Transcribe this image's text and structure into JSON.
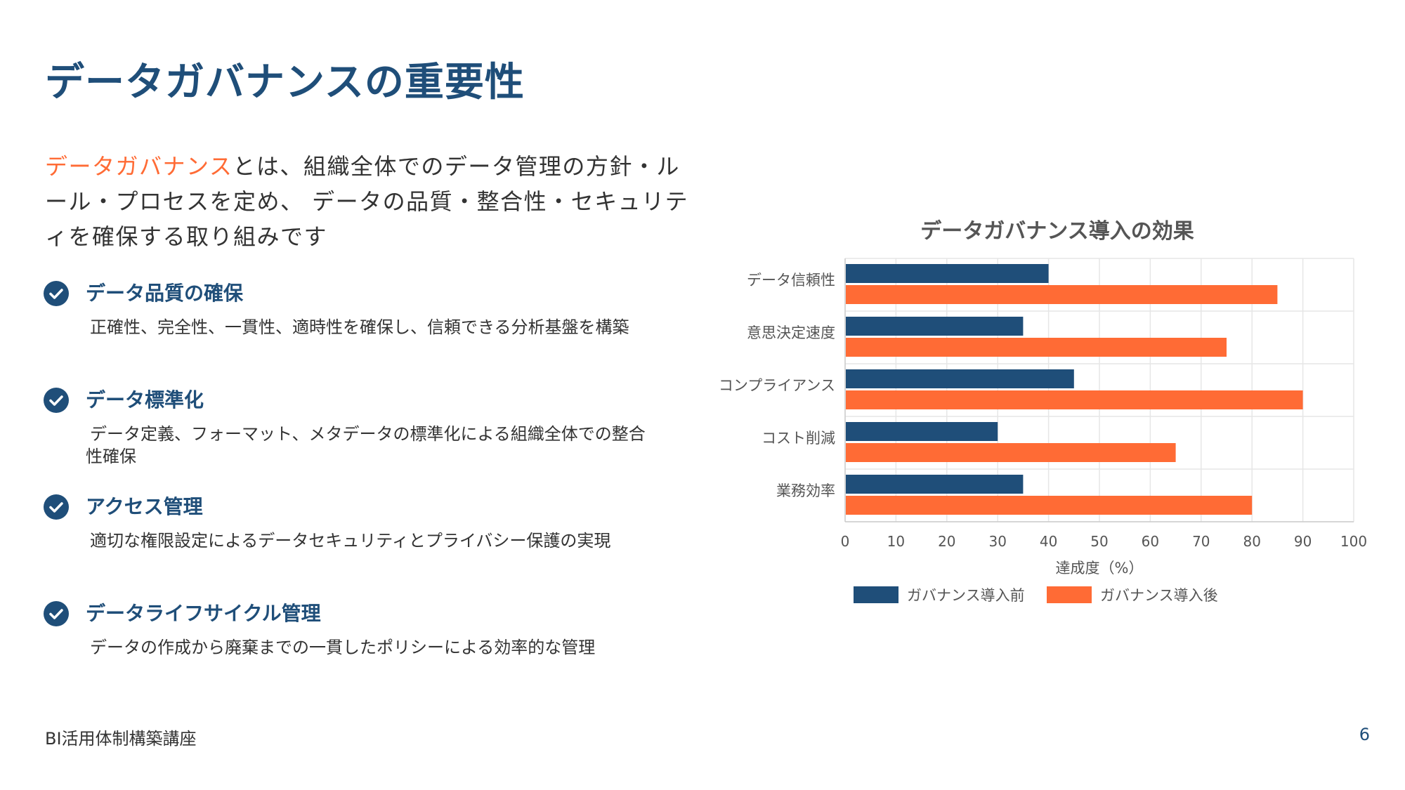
{
  "page": {
    "title": "データガバナンスの重要性",
    "footer_left": "BI活用体制構築講座",
    "page_number": "6"
  },
  "intro": {
    "highlight": "データガバナンス",
    "text": "とは、組織全体でのデータ管理の方針・ルール・プロセスを定め、 データの品質・整合性・セキュリティを確保する取り組みです"
  },
  "features": [
    {
      "icon": "check-circle-icon",
      "title": "データ品質の確保",
      "desc": "正確性、完全性、一貫性、適時性を確保し、信頼できる分析基盤を構築"
    },
    {
      "icon": "check-circle-icon",
      "title": "データ標準化",
      "desc": "データ定義、フォーマット、メタデータの標準化による組織全体での整合性確保"
    },
    {
      "icon": "check-circle-icon",
      "title": "アクセス管理",
      "desc": "適切な権限設定によるデータセキュリティとプライバシー保護の実現"
    },
    {
      "icon": "check-circle-icon",
      "title": "データライフサイクル管理",
      "desc": "データの作成から廃棄までの一貫したポリシーによる効率的な管理"
    }
  ],
  "colors": {
    "primary": "#1f4e79",
    "accent": "#ff6b35",
    "text": "#333333",
    "grid": "#e6e6e6"
  },
  "chart_data": {
    "type": "bar",
    "orientation": "horizontal",
    "title": "データガバナンス導入の効果",
    "categories": [
      "データ信頼性",
      "意思決定速度",
      "コンプライアンス",
      "コスト削減",
      "業務効率"
    ],
    "series": [
      {
        "name": "ガバナンス導入前",
        "color": "#1f4e79",
        "values": [
          40,
          35,
          45,
          30,
          35
        ]
      },
      {
        "name": "ガバナンス導入後",
        "color": "#ff6b35",
        "values": [
          85,
          75,
          90,
          65,
          80
        ]
      }
    ],
    "xlabel": "達成度（%）",
    "ylabel": "",
    "xlim": [
      0,
      100
    ],
    "xticks": [
      0,
      10,
      20,
      30,
      40,
      50,
      60,
      70,
      80,
      90,
      100
    ],
    "grid": true,
    "legend": "bottom"
  }
}
